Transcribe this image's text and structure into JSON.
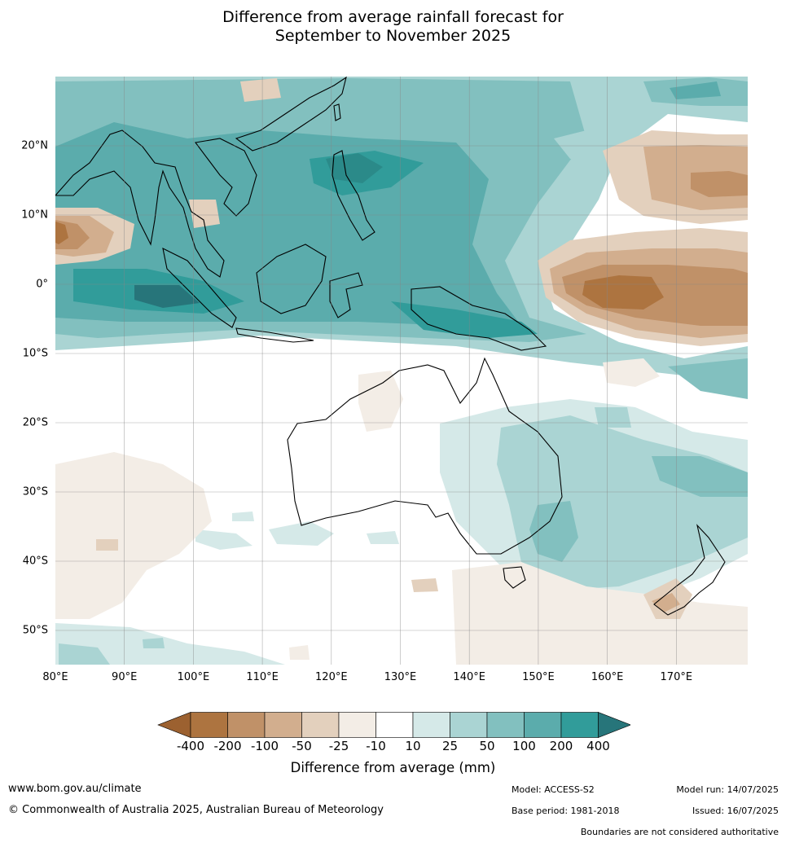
{
  "title_line1": "Difference from average rainfall forecast for",
  "title_line2": "September to November 2025",
  "longitude_labels": [
    "80°E",
    "90°E",
    "100°E",
    "110°E",
    "120°E",
    "130°E",
    "140°E",
    "150°E",
    "160°E",
    "170°E"
  ],
  "latitude_labels": [
    "20°N",
    "10°N",
    "0°",
    "10°S",
    "20°S",
    "30°S",
    "40°S",
    "50°S"
  ],
  "colorbar": {
    "label": "Difference from average (mm)",
    "ticks": [
      "-400",
      "-200",
      "-100",
      "-50",
      "-25",
      "-10",
      "10",
      "25",
      "50",
      "100",
      "200",
      "400"
    ],
    "colors": [
      "#9c6130",
      "#ad7440",
      "#c09168",
      "#d2ae8e",
      "#e3d0bd",
      "#f3ede6",
      "#ffffff",
      "#d5e9e8",
      "#aad4d3",
      "#82c0bf",
      "#5bacac",
      "#319c9a",
      "#27757a"
    ]
  },
  "footer": {
    "website": "www.bom.gov.au/climate",
    "copyright": "© Commonwealth of Australia 2025, Australian Bureau of Meteorology",
    "model": "Model: ACCESS-S2",
    "base_period": "Base period: 1981-2018",
    "model_run": "Model run: 14/07/2025",
    "issued": "Issued: 16/07/2025",
    "disclaimer": "Boundaries are not considered authoritative"
  }
}
